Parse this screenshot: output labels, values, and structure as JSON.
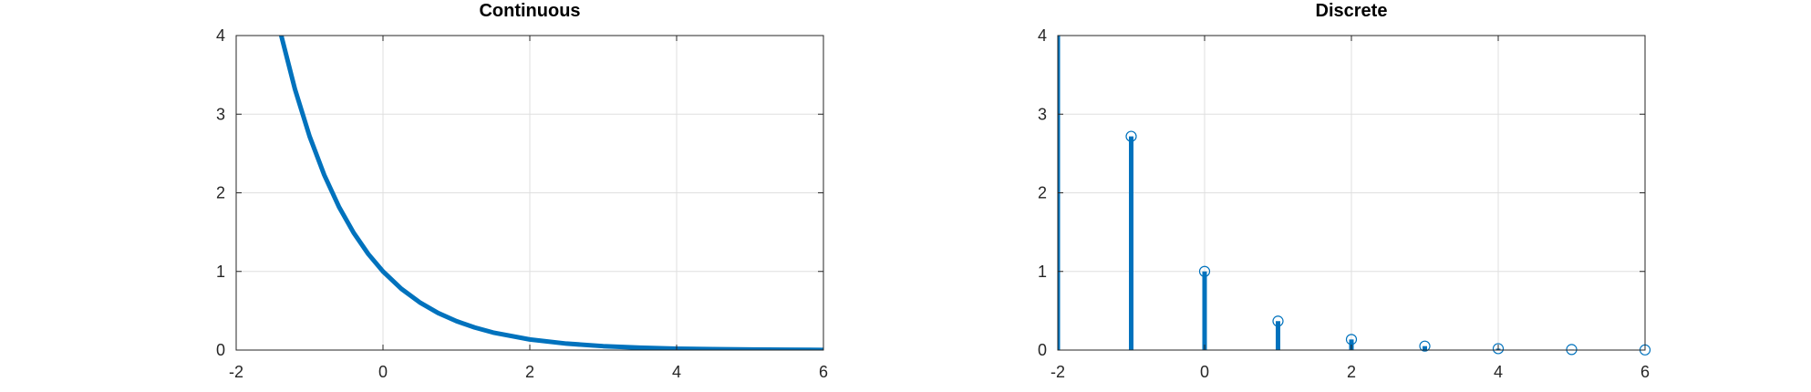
{
  "chart_data": [
    {
      "type": "line",
      "title": "Continuous",
      "xlabel": "",
      "ylabel": "",
      "xlim": [
        -2,
        6
      ],
      "ylim": [
        0,
        4
      ],
      "xticks": [
        -2,
        0,
        2,
        4,
        6
      ],
      "yticks": [
        0,
        1,
        2,
        3,
        4
      ],
      "grid": true,
      "color": "#0072bd",
      "series": [
        {
          "x": [
            -1.386,
            -1.2,
            -1.0,
            -0.8,
            -0.6,
            -0.4,
            -0.2,
            0.0,
            0.25,
            0.5,
            0.75,
            1.0,
            1.25,
            1.5,
            2.0,
            2.5,
            3.0,
            3.5,
            4.0,
            4.5,
            5.0,
            5.5,
            6.0
          ],
          "y": [
            4.0,
            3.32,
            2.718,
            2.226,
            1.822,
            1.492,
            1.221,
            1.0,
            0.779,
            0.607,
            0.472,
            0.368,
            0.287,
            0.223,
            0.135,
            0.082,
            0.05,
            0.03,
            0.018,
            0.011,
            0.007,
            0.004,
            0.002
          ]
        }
      ]
    },
    {
      "type": "stem",
      "title": "Discrete",
      "xlabel": "",
      "ylabel": "",
      "xlim": [
        -2,
        6
      ],
      "ylim": [
        0,
        4
      ],
      "xticks": [
        -2,
        0,
        2,
        4,
        6
      ],
      "yticks": [
        0,
        1,
        2,
        3,
        4
      ],
      "grid": true,
      "color": "#0072bd",
      "series": [
        {
          "x": [
            -2,
            -1,
            0,
            1,
            2,
            3,
            4,
            5,
            6
          ],
          "y": [
            7.389,
            2.718,
            1.0,
            0.368,
            0.135,
            0.05,
            0.018,
            0.007,
            0.002
          ]
        }
      ]
    }
  ]
}
